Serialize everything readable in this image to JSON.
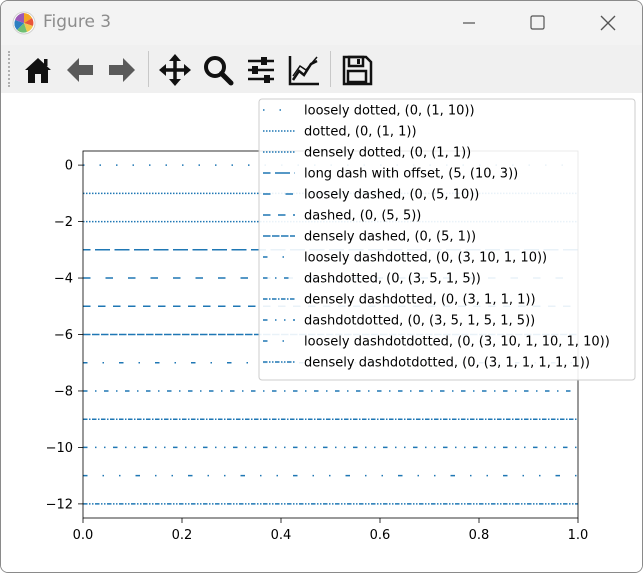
{
  "window": {
    "title": "Figure 3",
    "controls": [
      "minimize-icon",
      "maximize-icon",
      "close-icon"
    ]
  },
  "toolbar": {
    "buttons": [
      {
        "name": "home-icon",
        "label": "Home"
      },
      {
        "name": "back-icon",
        "label": "Back"
      },
      {
        "name": "forward-icon",
        "label": "Forward"
      },
      {
        "name": "pan-icon",
        "label": "Pan"
      },
      {
        "name": "zoom-icon",
        "label": "Zoom"
      },
      {
        "name": "subplots-icon",
        "label": "Subplots"
      },
      {
        "name": "customize-icon",
        "label": "Customize"
      },
      {
        "name": "save-icon",
        "label": "Save"
      }
    ]
  },
  "colors": {
    "line": "#1f77b4",
    "axis": "#000000",
    "legend_border": "#cccccc"
  },
  "chart_data": {
    "type": "line",
    "title": "",
    "xlabel": "",
    "ylabel": "",
    "xlim": [
      0,
      1
    ],
    "ylim": [
      -12.5,
      0.5
    ],
    "xticks": [
      "0.0",
      "0.2",
      "0.4",
      "0.6",
      "0.8",
      "1.0"
    ],
    "xtick_values": [
      0,
      0.2,
      0.4,
      0.6,
      0.8,
      1.0
    ],
    "yticks": [
      "0",
      "−2",
      "−4",
      "−6",
      "−8",
      "−10",
      "−12"
    ],
    "ytick_values": [
      0,
      -2,
      -4,
      -6,
      -8,
      -10,
      -12
    ],
    "grid": false,
    "legend_position": "upper-right",
    "series": [
      {
        "name": "loosely dotted, (0, (1, 10))",
        "y": 0,
        "offset": 0,
        "dash": [
          1,
          10
        ]
      },
      {
        "name": "dotted, (0, (1, 1))",
        "y": -1,
        "offset": 0,
        "dash": [
          1,
          1
        ]
      },
      {
        "name": "densely dotted, (0, (1, 1))",
        "y": -2,
        "offset": 0,
        "dash": [
          1,
          1
        ]
      },
      {
        "name": "long dash with offset, (5, (10, 3))",
        "y": -3,
        "offset": 5,
        "dash": [
          10,
          3
        ]
      },
      {
        "name": "loosely dashed, (0, (5, 10))",
        "y": -4,
        "offset": 0,
        "dash": [
          5,
          10
        ]
      },
      {
        "name": "dashed, (0, (5, 5))",
        "y": -5,
        "offset": 0,
        "dash": [
          5,
          5
        ]
      },
      {
        "name": "densely dashed, (0, (5, 1))",
        "y": -6,
        "offset": 0,
        "dash": [
          5,
          1
        ]
      },
      {
        "name": "loosely dashdotted, (0, (3, 10, 1, 10))",
        "y": -7,
        "offset": 0,
        "dash": [
          3,
          10,
          1,
          10
        ]
      },
      {
        "name": "dashdotted, (0, (3, 5, 1, 5))",
        "y": -8,
        "offset": 0,
        "dash": [
          3,
          5,
          1,
          5
        ]
      },
      {
        "name": "densely dashdotted, (0, (3, 1, 1, 1))",
        "y": -9,
        "offset": 0,
        "dash": [
          3,
          1,
          1,
          1
        ]
      },
      {
        "name": "dashdotdotted, (0, (3, 5, 1, 5, 1, 5))",
        "y": -10,
        "offset": 0,
        "dash": [
          3,
          5,
          1,
          5,
          1,
          5
        ]
      },
      {
        "name": "loosely dashdotdotted, (0, (3, 10, 1, 10, 1, 10))",
        "y": -11,
        "offset": 0,
        "dash": [
          3,
          10,
          1,
          10,
          1,
          10
        ]
      },
      {
        "name": "densely dashdotdotted, (0, (3, 1, 1, 1, 1, 1))",
        "y": -12,
        "offset": 0,
        "dash": [
          3,
          1,
          1,
          1,
          1,
          1
        ]
      }
    ]
  }
}
